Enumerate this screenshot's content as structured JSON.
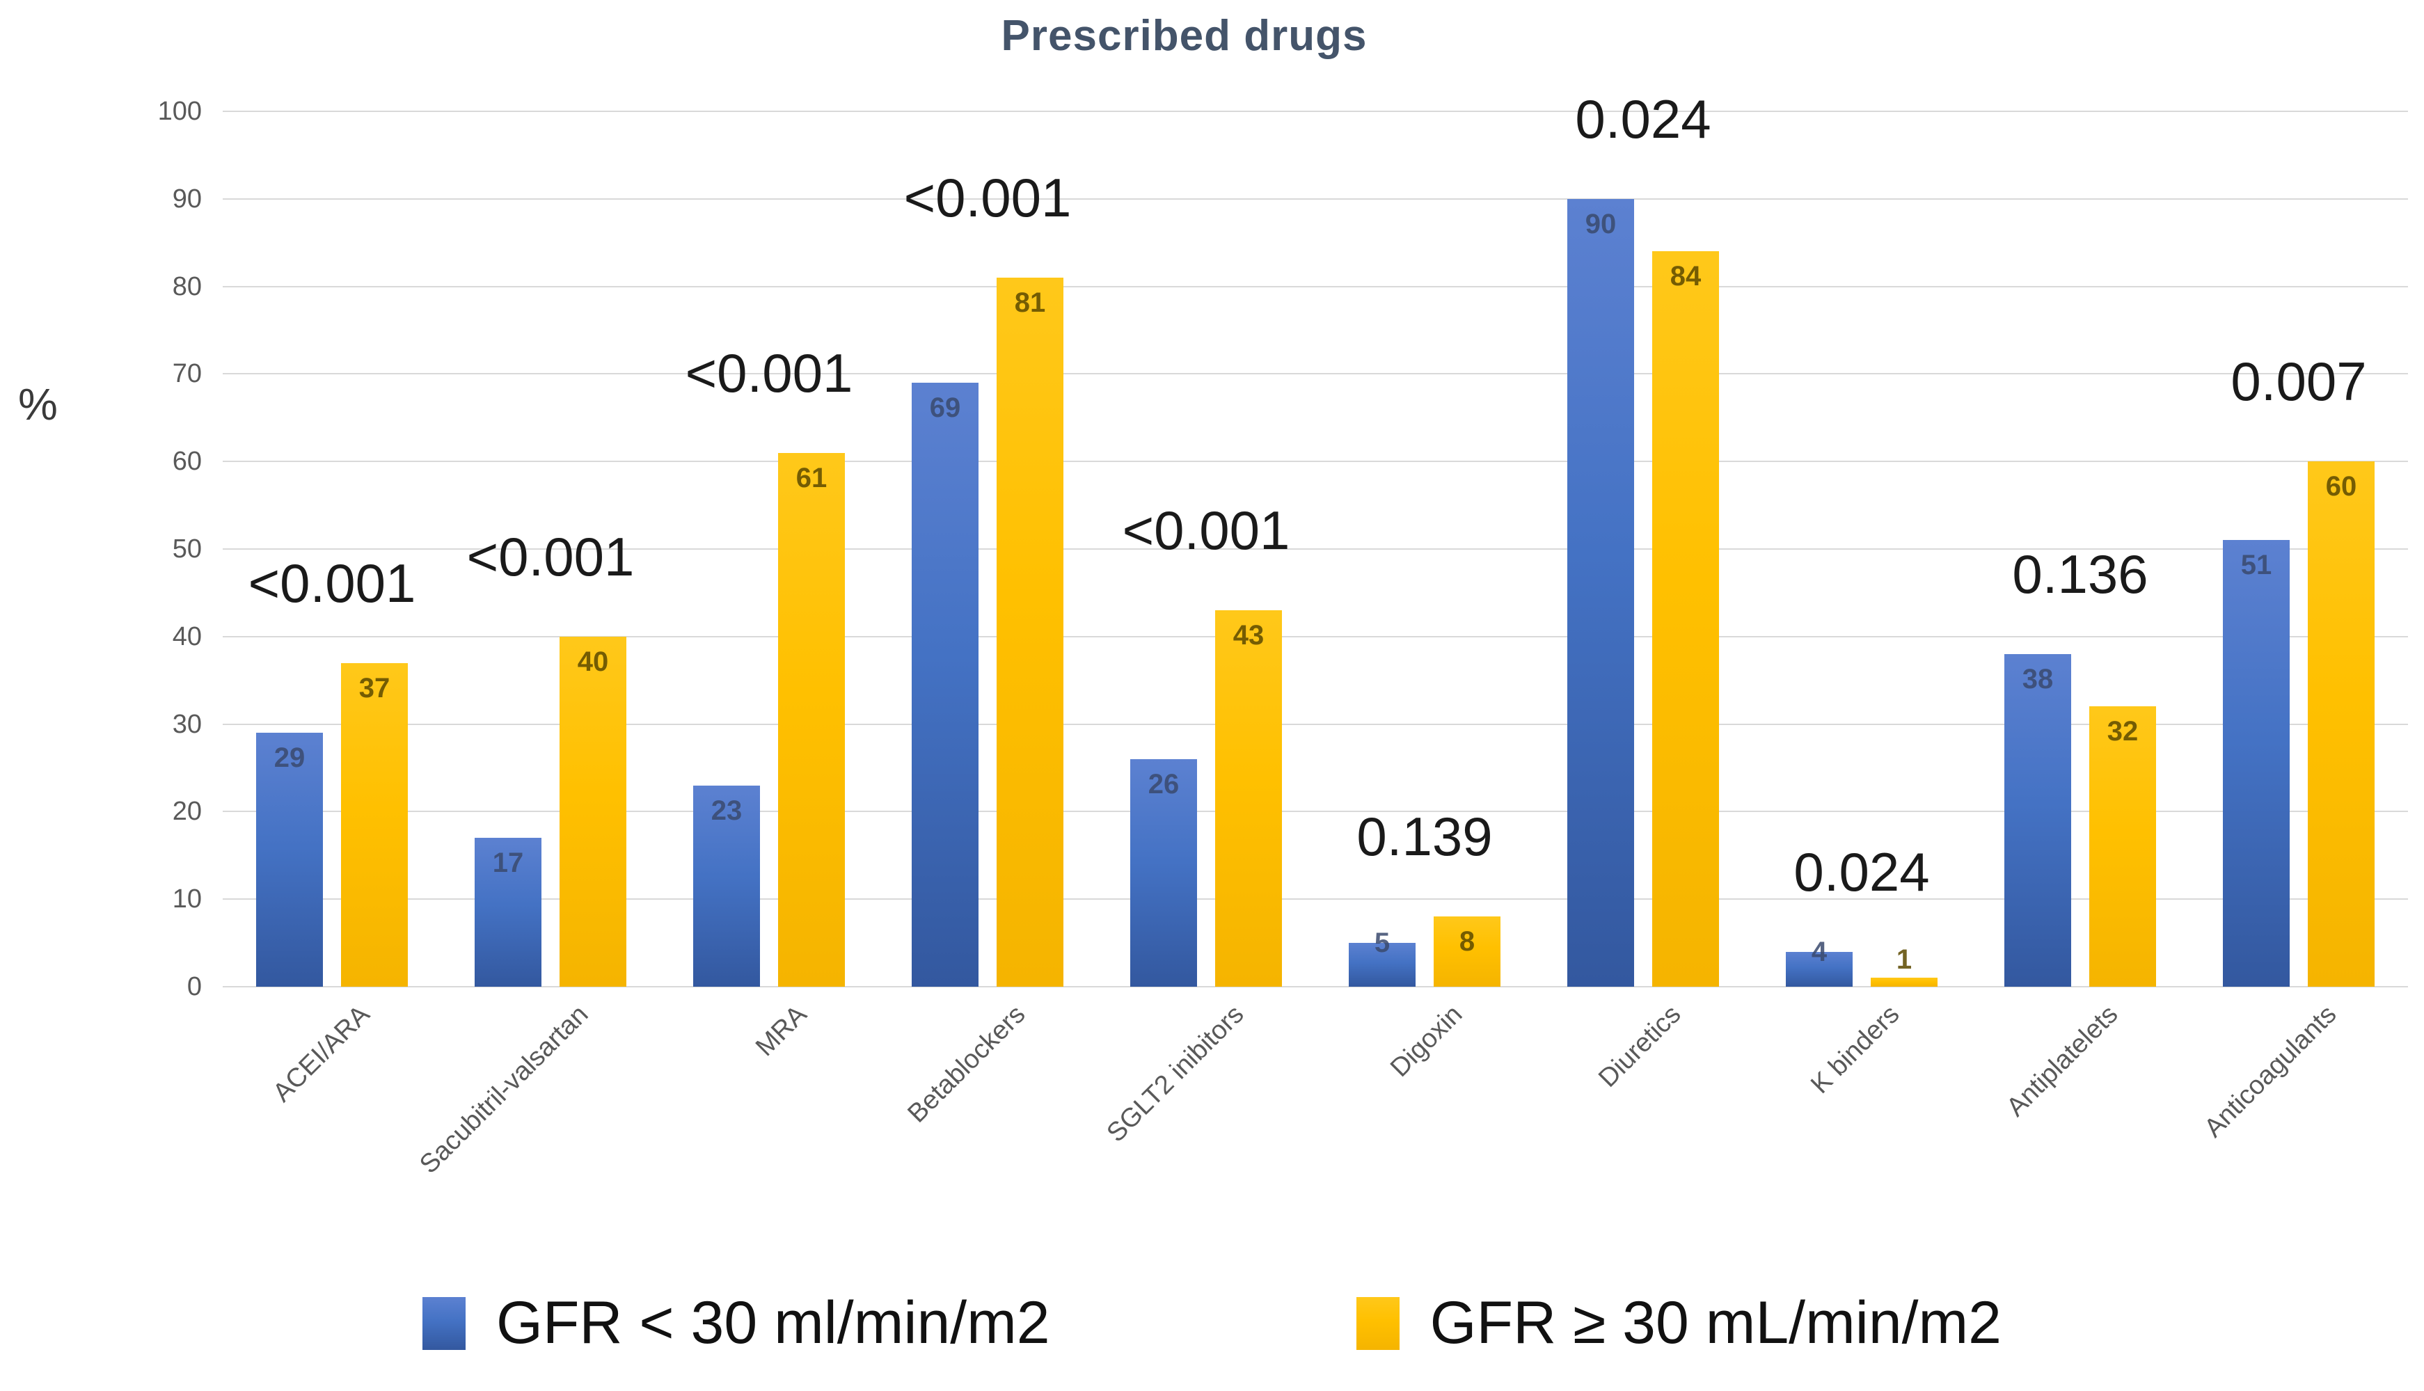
{
  "chart_data": {
    "type": "bar",
    "title": "Prescribed drugs",
    "ylabel": "%",
    "ylim": [
      0,
      100
    ],
    "yticks": [
      0,
      10,
      20,
      30,
      40,
      50,
      60,
      70,
      80,
      90,
      100
    ],
    "grid": true,
    "legend_position": "bottom",
    "categories": [
      "ACEI/ARA",
      "Sacubitril-valsartan",
      "MRA",
      "Betablockers",
      "SGLT2 inibitors",
      "Digoxin",
      "Diuretics",
      "K binders",
      "Antiplatelets",
      "Anticoagulants"
    ],
    "series": [
      {
        "name": "GFR < 30 ml/min/m2",
        "color": "#4472C4",
        "gradient_top": "#5c81d1",
        "gradient_bottom": "#33589f",
        "label_color": "#3a4a6e",
        "values": [
          29,
          17,
          23,
          69,
          26,
          5,
          90,
          4,
          38,
          51
        ]
      },
      {
        "name": "GFR ≥ 30 mL/min/m2",
        "color": "#FFC000",
        "gradient_top": "#ffc81a",
        "gradient_bottom": "#f5b400",
        "label_color": "#5c4a00",
        "values": [
          37,
          40,
          61,
          81,
          43,
          8,
          84,
          1,
          32,
          60
        ]
      }
    ],
    "p_values": [
      "<0.001",
      "<0.001",
      "<0.001",
      "<0.001",
      "<0.001",
      "0.139",
      "0.024",
      "0.024",
      "0.136",
      "0.007"
    ]
  },
  "colors": {
    "title": "#44546A",
    "axis_text": "#595959",
    "gridline": "#D9D9D9",
    "annotation": "#1a1a1a"
  }
}
